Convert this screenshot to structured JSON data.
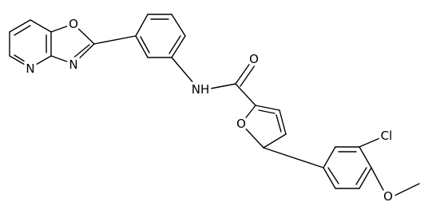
{
  "atoms": [
    {
      "label": "O"
    },
    {
      "label": "N"
    },
    {
      "label": "N"
    },
    {
      "label": "NH"
    },
    {
      "label": "O"
    },
    {
      "label": "O"
    },
    {
      "label": "Cl"
    },
    {
      "label": "O"
    }
  ]
}
